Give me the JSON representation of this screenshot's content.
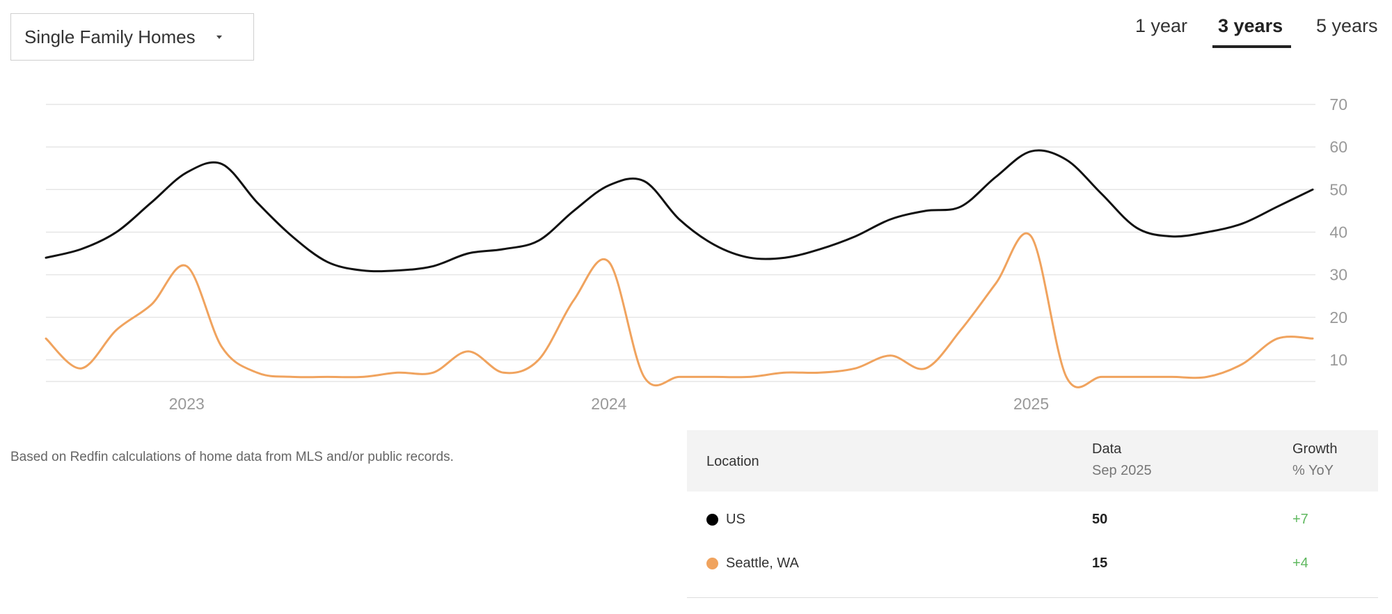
{
  "dropdown": {
    "label": "Single Family Homes"
  },
  "tabs": [
    {
      "label": "1 year",
      "active": false
    },
    {
      "label": "3 years",
      "active": true
    },
    {
      "label": "5 years",
      "active": false
    }
  ],
  "chart_data": {
    "type": "line",
    "title": "",
    "xlabel": "",
    "ylabel": "",
    "x_range": [
      "2022-09",
      "2025-09"
    ],
    "x_tick_labels": [
      {
        "label": "2023",
        "x": "2023-01"
      },
      {
        "label": "2024",
        "x": "2024-01"
      },
      {
        "label": "2025",
        "x": "2025-01"
      }
    ],
    "ylim": [
      5,
      70
    ],
    "y_ticks": [
      10,
      20,
      30,
      40,
      50,
      60,
      70
    ],
    "y_axis_side": "right",
    "grid": true,
    "series": [
      {
        "name": "US",
        "color": "#111111",
        "points": [
          [
            "2022-09",
            34
          ],
          [
            "2022-10",
            36
          ],
          [
            "2022-11",
            40
          ],
          [
            "2022-12",
            47
          ],
          [
            "2023-01",
            54
          ],
          [
            "2023-02",
            56
          ],
          [
            "2023-03",
            47
          ],
          [
            "2023-04",
            39
          ],
          [
            "2023-05",
            33
          ],
          [
            "2023-06",
            31
          ],
          [
            "2023-07",
            31
          ],
          [
            "2023-08",
            32
          ],
          [
            "2023-09",
            35
          ],
          [
            "2023-10",
            36
          ],
          [
            "2023-11",
            38
          ],
          [
            "2023-12",
            45
          ],
          [
            "2024-01",
            51
          ],
          [
            "2024-02",
            52
          ],
          [
            "2024-03",
            43
          ],
          [
            "2024-04",
            37
          ],
          [
            "2024-05",
            34
          ],
          [
            "2024-06",
            34
          ],
          [
            "2024-07",
            36
          ],
          [
            "2024-08",
            39
          ],
          [
            "2024-09",
            43
          ],
          [
            "2024-10",
            45
          ],
          [
            "2024-11",
            46
          ],
          [
            "2024-12",
            53
          ],
          [
            "2025-01",
            59
          ],
          [
            "2025-02",
            57
          ],
          [
            "2025-03",
            49
          ],
          [
            "2025-04",
            41
          ],
          [
            "2025-05",
            39
          ],
          [
            "2025-06",
            40
          ],
          [
            "2025-07",
            42
          ],
          [
            "2025-08",
            46
          ],
          [
            "2025-09",
            50
          ]
        ]
      },
      {
        "name": "Seattle, WA",
        "color": "#f0a35e",
        "points": [
          [
            "2022-09",
            15
          ],
          [
            "2022-10",
            8
          ],
          [
            "2022-11",
            17
          ],
          [
            "2022-12",
            23
          ],
          [
            "2023-01",
            32
          ],
          [
            "2023-02",
            13
          ],
          [
            "2023-03",
            7
          ],
          [
            "2023-04",
            6
          ],
          [
            "2023-05",
            6
          ],
          [
            "2023-06",
            6
          ],
          [
            "2023-07",
            7
          ],
          [
            "2023-08",
            7
          ],
          [
            "2023-09",
            12
          ],
          [
            "2023-10",
            7
          ],
          [
            "2023-11",
            10
          ],
          [
            "2023-12",
            24
          ],
          [
            "2024-01",
            33
          ],
          [
            "2024-02",
            6
          ],
          [
            "2024-03",
            6
          ],
          [
            "2024-04",
            6
          ],
          [
            "2024-05",
            6
          ],
          [
            "2024-06",
            7
          ],
          [
            "2024-07",
            7
          ],
          [
            "2024-08",
            8
          ],
          [
            "2024-09",
            11
          ],
          [
            "2024-10",
            8
          ],
          [
            "2024-11",
            17
          ],
          [
            "2024-12",
            28
          ],
          [
            "2025-01",
            39
          ],
          [
            "2025-02",
            6
          ],
          [
            "2025-03",
            6
          ],
          [
            "2025-04",
            6
          ],
          [
            "2025-05",
            6
          ],
          [
            "2025-06",
            6
          ],
          [
            "2025-07",
            9
          ],
          [
            "2025-08",
            15
          ],
          [
            "2025-09",
            15
          ]
        ]
      }
    ]
  },
  "footnote": "Based on Redfin calculations of home data from MLS and/or public records.",
  "table": {
    "headers": {
      "location": "Location",
      "data": "Data",
      "data_sub": "Sep 2025",
      "growth": "Growth",
      "growth_sub": "% YoY"
    },
    "rows": [
      {
        "location": "US",
        "value": "50",
        "growth": "+7",
        "dot_color": "#000000",
        "growth_color": "#5fb85f"
      },
      {
        "location": "Seattle, WA",
        "value": "15",
        "growth": "+4",
        "dot_color": "#f0a35e",
        "growth_color": "#5fb85f"
      }
    ]
  }
}
